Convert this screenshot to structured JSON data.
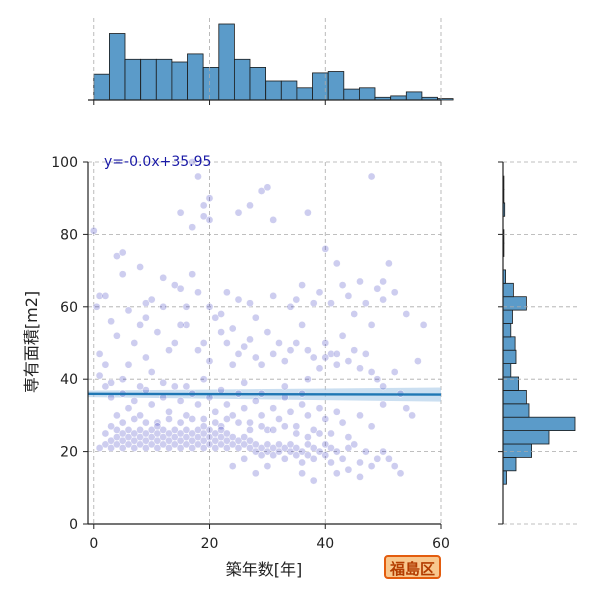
{
  "badge": "福島区",
  "chart_data": {
    "type": "scatter",
    "xlabel": "築年数[年]",
    "ylabel": "専有面積[m2]",
    "xlim": [
      -1,
      60
    ],
    "ylim": [
      0,
      100
    ],
    "xticks": [
      0,
      20,
      40,
      60
    ],
    "yticks": [
      0,
      20,
      40,
      60,
      80,
      100
    ],
    "grid": true,
    "regression": {
      "label": "y=-0.0x+35.95",
      "slope": -0.003,
      "intercept": 35.95,
      "ci_halfwidth": 1.5
    },
    "point_color": "#1a1ab8",
    "line_color": "#1f77b4",
    "ci_color": "#a9c9e8",
    "points": [
      [
        1,
        63
      ],
      [
        0.5,
        60
      ],
      [
        2,
        63
      ],
      [
        4,
        74
      ],
      [
        5,
        69
      ],
      [
        5,
        75
      ],
      [
        8,
        71
      ],
      [
        9,
        61
      ],
      [
        10,
        62
      ],
      [
        12,
        68
      ],
      [
        14,
        66
      ],
      [
        15,
        65
      ],
      [
        16,
        60
      ],
      [
        17,
        69
      ],
      [
        18,
        64
      ],
      [
        17,
        82
      ],
      [
        15,
        86
      ],
      [
        19,
        85
      ],
      [
        20,
        84
      ],
      [
        19,
        88
      ],
      [
        20,
        90
      ],
      [
        18,
        96
      ],
      [
        17,
        100
      ],
      [
        25,
        86
      ],
      [
        27,
        88
      ],
      [
        29,
        92
      ],
      [
        30,
        93
      ],
      [
        31,
        84
      ],
      [
        37,
        86
      ],
      [
        40,
        76
      ],
      [
        42,
        72
      ],
      [
        46,
        67
      ],
      [
        48,
        96
      ],
      [
        49,
        65
      ],
      [
        50,
        67
      ],
      [
        51,
        72
      ],
      [
        54,
        58
      ],
      [
        57,
        55
      ],
      [
        0,
        81
      ],
      [
        1,
        47
      ],
      [
        2,
        44
      ],
      [
        3,
        39
      ],
      [
        4,
        52
      ],
      [
        6,
        44
      ],
      [
        7,
        50
      ],
      [
        8,
        55
      ],
      [
        9,
        46
      ],
      [
        10,
        42
      ],
      [
        11,
        53
      ],
      [
        13,
        48
      ],
      [
        14,
        50
      ],
      [
        16,
        55
      ],
      [
        18,
        48
      ],
      [
        20,
        45
      ],
      [
        21,
        57
      ],
      [
        22,
        53
      ],
      [
        23,
        50
      ],
      [
        24,
        54
      ],
      [
        25,
        47
      ],
      [
        26,
        49
      ],
      [
        27,
        51
      ],
      [
        28,
        46
      ],
      [
        29,
        44
      ],
      [
        30,
        53
      ],
      [
        31,
        47
      ],
      [
        32,
        50
      ],
      [
        33,
        45
      ],
      [
        34,
        48
      ],
      [
        35,
        50
      ],
      [
        36,
        55
      ],
      [
        37,
        48
      ],
      [
        38,
        46
      ],
      [
        39,
        43
      ],
      [
        40,
        50
      ],
      [
        41,
        47
      ],
      [
        42,
        44
      ],
      [
        43,
        52
      ],
      [
        44,
        45
      ],
      [
        45,
        48
      ],
      [
        46,
        43
      ],
      [
        47,
        47
      ],
      [
        48,
        42
      ],
      [
        49,
        40
      ],
      [
        50,
        38
      ],
      [
        52,
        42
      ],
      [
        53,
        36
      ],
      [
        54,
        32
      ],
      [
        55,
        30
      ],
      [
        56,
        45
      ],
      [
        1,
        41
      ],
      [
        2,
        38
      ],
      [
        3,
        35
      ],
      [
        4,
        30
      ],
      [
        5,
        36
      ],
      [
        6,
        32
      ],
      [
        7,
        34
      ],
      [
        8,
        30
      ],
      [
        9,
        37
      ],
      [
        10,
        33
      ],
      [
        11,
        28
      ],
      [
        12,
        35
      ],
      [
        13,
        31
      ],
      [
        14,
        38
      ],
      [
        15,
        34
      ],
      [
        16,
        30
      ],
      [
        17,
        36
      ],
      [
        18,
        33
      ],
      [
        19,
        29
      ],
      [
        20,
        35
      ],
      [
        21,
        31
      ],
      [
        22,
        27
      ],
      [
        23,
        33
      ],
      [
        24,
        30
      ],
      [
        25,
        36
      ],
      [
        26,
        32
      ],
      [
        27,
        28
      ],
      [
        28,
        34
      ],
      [
        29,
        30
      ],
      [
        30,
        26
      ],
      [
        31,
        32
      ],
      [
        32,
        29
      ],
      [
        33,
        35
      ],
      [
        34,
        31
      ],
      [
        35,
        27
      ],
      [
        36,
        33
      ],
      [
        37,
        30
      ],
      [
        38,
        26
      ],
      [
        39,
        32
      ],
      [
        40,
        29
      ],
      [
        41,
        25
      ],
      [
        42,
        31
      ],
      [
        43,
        28
      ],
      [
        44,
        24
      ],
      [
        46,
        30
      ],
      [
        48,
        27
      ],
      [
        50,
        33
      ],
      [
        51,
        18
      ],
      [
        52,
        16
      ],
      [
        53,
        14
      ],
      [
        2,
        22
      ],
      [
        2,
        25
      ],
      [
        3,
        21
      ],
      [
        3,
        23
      ],
      [
        4,
        22
      ],
      [
        4,
        24
      ],
      [
        4,
        26
      ],
      [
        5,
        21
      ],
      [
        5,
        23
      ],
      [
        5,
        25
      ],
      [
        6,
        22
      ],
      [
        6,
        24
      ],
      [
        6,
        26
      ],
      [
        7,
        21
      ],
      [
        7,
        23
      ],
      [
        7,
        25
      ],
      [
        8,
        22
      ],
      [
        8,
        24
      ],
      [
        8,
        26
      ],
      [
        9,
        21
      ],
      [
        9,
        23
      ],
      [
        9,
        25
      ],
      [
        10,
        22
      ],
      [
        10,
        24
      ],
      [
        10,
        26
      ],
      [
        11,
        21
      ],
      [
        11,
        23
      ],
      [
        11,
        25
      ],
      [
        12,
        22
      ],
      [
        12,
        24
      ],
      [
        12,
        26
      ],
      [
        13,
        21
      ],
      [
        13,
        23
      ],
      [
        13,
        25
      ],
      [
        14,
        22
      ],
      [
        14,
        24
      ],
      [
        14,
        26
      ],
      [
        15,
        21
      ],
      [
        15,
        23
      ],
      [
        15,
        25
      ],
      [
        16,
        22
      ],
      [
        16,
        24
      ],
      [
        16,
        26
      ],
      [
        17,
        21
      ],
      [
        17,
        23
      ],
      [
        17,
        25
      ],
      [
        18,
        22
      ],
      [
        18,
        24
      ],
      [
        18,
        26
      ],
      [
        19,
        21
      ],
      [
        19,
        23
      ],
      [
        19,
        25
      ],
      [
        20,
        22
      ],
      [
        20,
        24
      ],
      [
        20,
        26
      ],
      [
        21,
        21
      ],
      [
        21,
        23
      ],
      [
        21,
        25
      ],
      [
        22,
        22
      ],
      [
        22,
        24
      ],
      [
        22,
        26
      ],
      [
        23,
        21
      ],
      [
        23,
        23
      ],
      [
        23,
        25
      ],
      [
        24,
        22
      ],
      [
        24,
        24
      ],
      [
        25,
        21
      ],
      [
        25,
        23
      ],
      [
        26,
        22
      ],
      [
        26,
        24
      ],
      [
        27,
        21
      ],
      [
        27,
        23
      ],
      [
        28,
        22
      ],
      [
        28,
        20
      ],
      [
        29,
        21
      ],
      [
        29,
        19
      ],
      [
        30,
        22
      ],
      [
        30,
        20
      ],
      [
        31,
        21
      ],
      [
        31,
        19
      ],
      [
        32,
        22
      ],
      [
        32,
        20
      ],
      [
        33,
        21
      ],
      [
        33,
        18
      ],
      [
        34,
        20
      ],
      [
        34,
        22
      ],
      [
        35,
        19
      ],
      [
        35,
        21
      ],
      [
        36,
        20
      ],
      [
        36,
        17
      ],
      [
        37,
        19
      ],
      [
        37,
        22
      ],
      [
        38,
        21
      ],
      [
        38,
        18
      ],
      [
        39,
        20
      ],
      [
        40,
        19
      ],
      [
        40,
        22
      ],
      [
        41,
        17
      ],
      [
        41,
        21
      ],
      [
        42,
        20
      ],
      [
        43,
        18
      ],
      [
        44,
        21
      ],
      [
        45,
        22
      ],
      [
        46,
        17
      ],
      [
        47,
        20
      ],
      [
        48,
        16
      ],
      [
        49,
        18
      ],
      [
        50,
        20
      ],
      [
        44,
        15
      ],
      [
        42,
        14
      ],
      [
        46,
        13
      ],
      [
        38,
        12
      ],
      [
        36,
        14
      ],
      [
        30,
        16
      ],
      [
        28,
        14
      ],
      [
        26,
        18
      ],
      [
        24,
        16
      ],
      [
        1,
        21
      ],
      [
        3,
        27
      ],
      [
        5,
        28
      ],
      [
        7,
        29
      ],
      [
        9,
        28
      ],
      [
        11,
        27
      ],
      [
        13,
        29
      ],
      [
        15,
        28
      ],
      [
        17,
        29
      ],
      [
        19,
        27
      ],
      [
        21,
        28
      ],
      [
        23,
        29
      ],
      [
        25,
        28
      ],
      [
        27,
        26
      ],
      [
        29,
        27
      ],
      [
        31,
        26
      ],
      [
        33,
        27
      ],
      [
        35,
        25
      ],
      [
        37,
        24
      ],
      [
        39,
        25
      ],
      [
        5,
        40
      ],
      [
        8,
        38
      ],
      [
        12,
        39
      ],
      [
        16,
        38
      ],
      [
        19,
        40
      ],
      [
        22,
        37
      ],
      [
        26,
        39
      ],
      [
        29,
        36
      ],
      [
        33,
        38
      ],
      [
        36,
        36
      ],
      [
        38,
        61
      ],
      [
        40,
        46
      ],
      [
        37,
        40
      ],
      [
        42,
        47
      ],
      [
        20,
        60
      ],
      [
        22,
        58
      ],
      [
        23,
        64
      ],
      [
        25,
        62
      ],
      [
        27,
        61
      ],
      [
        28,
        57
      ],
      [
        31,
        63
      ],
      [
        34,
        60
      ],
      [
        35,
        62
      ],
      [
        36,
        66
      ],
      [
        39,
        64
      ],
      [
        41,
        61
      ],
      [
        43,
        66
      ],
      [
        44,
        63
      ],
      [
        45,
        58
      ],
      [
        47,
        61
      ],
      [
        48,
        55
      ],
      [
        50,
        62
      ],
      [
        52,
        64
      ],
      [
        3,
        56
      ],
      [
        6,
        59
      ],
      [
        9,
        57
      ],
      [
        12,
        60
      ],
      [
        15,
        55
      ],
      [
        19,
        50
      ],
      [
        24,
        44
      ]
    ],
    "x_hist": {
      "bin_width": 2.7,
      "bin_start": 0,
      "counts": [
        19,
        49,
        30,
        30,
        30,
        28,
        34,
        24,
        56,
        30,
        24,
        14,
        14,
        9,
        20,
        21,
        8,
        9,
        2,
        3,
        6,
        2,
        1
      ]
    },
    "y_hist": {
      "bin_width": 3.7,
      "bin_start": 11,
      "counts": [
        4,
        15,
        33,
        53,
        83,
        30,
        27,
        18,
        9,
        15,
        14,
        9,
        11,
        27,
        12,
        3,
        0,
        1,
        1,
        0,
        2,
        1,
        1
      ]
    }
  }
}
